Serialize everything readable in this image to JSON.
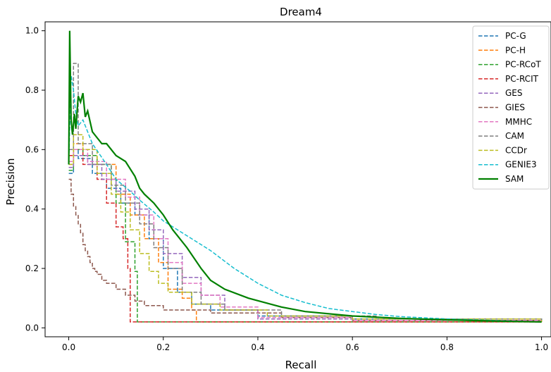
{
  "chart_data": {
    "type": "line",
    "title": "Dream4",
    "xlabel": "Recall",
    "ylabel": "Precision",
    "xlim": [
      -0.05,
      1.02
    ],
    "ylim": [
      -0.03,
      1.03
    ],
    "xticks": [
      0.0,
      0.2,
      0.4,
      0.6,
      0.8,
      1.0
    ],
    "xtick_labels": [
      "0.0",
      "0.2",
      "0.4",
      "0.6",
      "0.8",
      "1.0"
    ],
    "yticks": [
      0.0,
      0.2,
      0.4,
      0.6,
      0.8,
      1.0
    ],
    "ytick_labels": [
      "0.0",
      "0.2",
      "0.4",
      "0.6",
      "0.8",
      "1.0"
    ],
    "grid": false,
    "legend_position": "top-right",
    "series": [
      {
        "name": "PC-G",
        "color": "#1f77b4",
        "style": "dashed",
        "step": true,
        "x": [
          0.0,
          0.01,
          0.02,
          0.05,
          0.08,
          0.11,
          0.14,
          0.17,
          0.2,
          0.23,
          0.26,
          0.3,
          0.4,
          0.6,
          1.0
        ],
        "y": [
          0.52,
          0.6,
          0.57,
          0.52,
          0.47,
          0.42,
          0.38,
          0.3,
          0.2,
          0.12,
          0.08,
          0.06,
          0.04,
          0.03,
          0.02
        ]
      },
      {
        "name": "PC-H",
        "color": "#ff7f0e",
        "style": "dashed",
        "step": true,
        "x": [
          0.0,
          0.01,
          0.03,
          0.06,
          0.1,
          0.13,
          0.16,
          0.19,
          0.21,
          0.24,
          0.26,
          0.27,
          0.5,
          1.0
        ],
        "y": [
          0.55,
          0.62,
          0.58,
          0.55,
          0.45,
          0.38,
          0.3,
          0.22,
          0.13,
          0.1,
          0.06,
          0.02,
          0.02,
          0.02
        ]
      },
      {
        "name": "PC-RCoT",
        "color": "#2ca02c",
        "style": "dashed",
        "step": true,
        "x": [
          0.0,
          0.01,
          0.03,
          0.06,
          0.09,
          0.1,
          0.12,
          0.14,
          0.145,
          0.3,
          1.0
        ],
        "y": [
          0.53,
          0.6,
          0.58,
          0.55,
          0.5,
          0.42,
          0.29,
          0.19,
          0.02,
          0.02,
          0.02
        ]
      },
      {
        "name": "PC-RCIT",
        "color": "#d62728",
        "style": "dashed",
        "step": true,
        "x": [
          0.0,
          0.01,
          0.03,
          0.06,
          0.08,
          0.1,
          0.115,
          0.125,
          0.13,
          0.3,
          1.0
        ],
        "y": [
          0.58,
          0.6,
          0.55,
          0.5,
          0.42,
          0.34,
          0.3,
          0.2,
          0.02,
          0.02,
          0.02
        ]
      },
      {
        "name": "GES",
        "color": "#9467bd",
        "style": "dashed",
        "step": true,
        "x": [
          0.0,
          0.01,
          0.04,
          0.07,
          0.1,
          0.14,
          0.17,
          0.2,
          0.24,
          0.28,
          0.33,
          0.4,
          0.6,
          1.0
        ],
        "y": [
          0.54,
          0.58,
          0.55,
          0.5,
          0.46,
          0.4,
          0.33,
          0.25,
          0.17,
          0.11,
          0.06,
          0.03,
          0.025,
          0.02
        ]
      },
      {
        "name": "GIES",
        "color": "#8c564b",
        "style": "dashed",
        "step": true,
        "x": [
          0.0,
          0.005,
          0.01,
          0.015,
          0.02,
          0.025,
          0.03,
          0.035,
          0.04,
          0.045,
          0.05,
          0.055,
          0.06,
          0.07,
          0.08,
          0.1,
          0.12,
          0.14,
          0.16,
          0.2,
          0.3,
          0.45,
          0.6,
          1.0
        ],
        "y": [
          0.5,
          0.45,
          0.41,
          0.38,
          0.35,
          0.32,
          0.28,
          0.26,
          0.24,
          0.22,
          0.2,
          0.19,
          0.18,
          0.16,
          0.15,
          0.13,
          0.11,
          0.09,
          0.075,
          0.06,
          0.05,
          0.035,
          0.025,
          0.02
        ]
      },
      {
        "name": "MMHC",
        "color": "#e377c2",
        "style": "dashed",
        "step": true,
        "x": [
          0.0,
          0.01,
          0.04,
          0.08,
          0.12,
          0.15,
          0.18,
          0.21,
          0.24,
          0.28,
          0.32,
          0.4,
          0.6,
          1.0
        ],
        "y": [
          0.56,
          0.6,
          0.56,
          0.5,
          0.44,
          0.38,
          0.3,
          0.22,
          0.15,
          0.11,
          0.07,
          0.035,
          0.025,
          0.02
        ]
      },
      {
        "name": "CAM",
        "color": "#7f7f7f",
        "style": "dashed",
        "step": true,
        "x": [
          0.0,
          0.01,
          0.02,
          0.05,
          0.09,
          0.12,
          0.15,
          0.18,
          0.21,
          0.24,
          0.28,
          0.33,
          0.45,
          0.65,
          1.0
        ],
        "y": [
          0.6,
          0.89,
          0.62,
          0.55,
          0.48,
          0.42,
          0.35,
          0.27,
          0.2,
          0.12,
          0.08,
          0.06,
          0.04,
          0.03,
          0.02
        ]
      },
      {
        "name": "CCDr",
        "color": "#bcbd22",
        "style": "dashed",
        "step": true,
        "x": [
          0.0,
          0.01,
          0.03,
          0.06,
          0.09,
          0.11,
          0.13,
          0.15,
          0.17,
          0.19,
          0.21,
          0.26,
          0.32,
          0.42,
          0.6,
          1.0
        ],
        "y": [
          0.55,
          0.65,
          0.6,
          0.52,
          0.45,
          0.39,
          0.33,
          0.25,
          0.19,
          0.15,
          0.12,
          0.08,
          0.06,
          0.04,
          0.03,
          0.02
        ]
      },
      {
        "name": "GENIE3",
        "color": "#17becf",
        "style": "dashed",
        "step": false,
        "x": [
          0.0,
          0.005,
          0.01,
          0.015,
          0.02,
          0.03,
          0.05,
          0.08,
          0.1,
          0.13,
          0.15,
          0.18,
          0.2,
          0.25,
          0.3,
          0.35,
          0.4,
          0.45,
          0.5,
          0.55,
          0.6,
          0.65,
          0.7,
          0.8,
          0.9,
          1.0
        ],
        "y": [
          0.55,
          0.85,
          0.8,
          0.72,
          0.68,
          0.7,
          0.62,
          0.55,
          0.5,
          0.46,
          0.43,
          0.39,
          0.36,
          0.31,
          0.26,
          0.2,
          0.15,
          0.11,
          0.085,
          0.065,
          0.055,
          0.045,
          0.038,
          0.03,
          0.025,
          0.02
        ]
      },
      {
        "name": "SAM",
        "color": "#008000",
        "style": "solid",
        "step": false,
        "x": [
          0.0,
          0.002,
          0.005,
          0.008,
          0.012,
          0.015,
          0.02,
          0.025,
          0.03,
          0.035,
          0.04,
          0.05,
          0.06,
          0.07,
          0.08,
          0.1,
          0.12,
          0.14,
          0.15,
          0.16,
          0.18,
          0.2,
          0.22,
          0.25,
          0.28,
          0.3,
          0.33,
          0.38,
          0.45,
          0.5,
          0.6,
          0.7,
          0.8,
          0.9,
          1.0
        ],
        "y": [
          0.55,
          1.0,
          0.7,
          0.65,
          0.72,
          0.67,
          0.78,
          0.76,
          0.79,
          0.71,
          0.73,
          0.66,
          0.64,
          0.62,
          0.62,
          0.58,
          0.56,
          0.51,
          0.47,
          0.45,
          0.42,
          0.38,
          0.33,
          0.27,
          0.2,
          0.16,
          0.13,
          0.1,
          0.07,
          0.055,
          0.04,
          0.032,
          0.027,
          0.023,
          0.02
        ]
      }
    ]
  }
}
